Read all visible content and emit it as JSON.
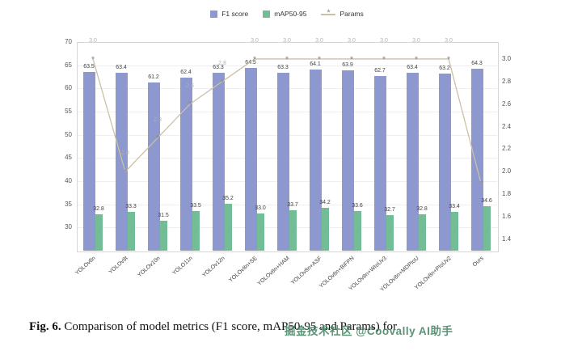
{
  "figure": {
    "caption_prefix": "Fig. 6.",
    "caption_text": "Comparison of model metrics (F1 score, mAP50-95 and Params) for",
    "watermark": "掘金技术社区 @Coovally AI助手"
  },
  "chart_data": {
    "type": "bar+line",
    "title": "",
    "legend_position": "top",
    "grid": true,
    "categories": [
      "YOLOv8n",
      "YOLOv9t",
      "YOLOv10n",
      "YOLO11n",
      "YOLOv12n",
      "YOLOv8n+SE",
      "YOLOv8n+HAM",
      "YOLOv8n+ASF",
      "YOLOv8n+BiFPN",
      "YOLOv8n+WIoUv3",
      "YOLOv8n+MDPIoU",
      "YOLOv8n+PIoUv2",
      "Ours"
    ],
    "series": [
      {
        "name": "F1 score",
        "type": "bar",
        "color": "#8c98ce",
        "values": [
          63.5,
          63.4,
          61.2,
          62.4,
          63.3,
          64.5,
          63.3,
          64.1,
          63.9,
          62.7,
          63.4,
          63.2,
          64.3
        ]
      },
      {
        "name": "mAP50-95",
        "type": "bar",
        "color": "#72bd95",
        "values": [
          32.8,
          33.3,
          31.5,
          33.5,
          35.2,
          33.0,
          33.7,
          34.2,
          33.6,
          32.7,
          32.8,
          33.4,
          34.6
        ]
      },
      {
        "name": "Params",
        "type": "line",
        "color": "#ccc0a6",
        "marker_color": "#8a8a8a",
        "values": [
          3.0,
          2.0,
          2.3,
          2.6,
          2.8,
          3.0,
          3.0,
          3.0,
          3.0,
          3.0,
          3.0,
          3.0,
          1.9
        ],
        "labels": [
          "3.0",
          "2.0",
          "2.3",
          "2.6",
          "2.8",
          "3.0",
          "3.0",
          "3.0",
          "3.0",
          "3.0",
          "3.0",
          "3.0",
          ""
        ]
      }
    ],
    "left_axis": {
      "label": "",
      "range": [
        25,
        70
      ],
      "ticks": [
        30,
        35,
        40,
        45,
        50,
        55,
        60,
        65,
        70
      ]
    },
    "right_axis": {
      "label": "",
      "range": [
        1.3,
        3.15
      ],
      "ticks": [
        1.4,
        1.6,
        1.8,
        2.0,
        2.2,
        2.4,
        2.6,
        2.8,
        3.0
      ]
    }
  }
}
